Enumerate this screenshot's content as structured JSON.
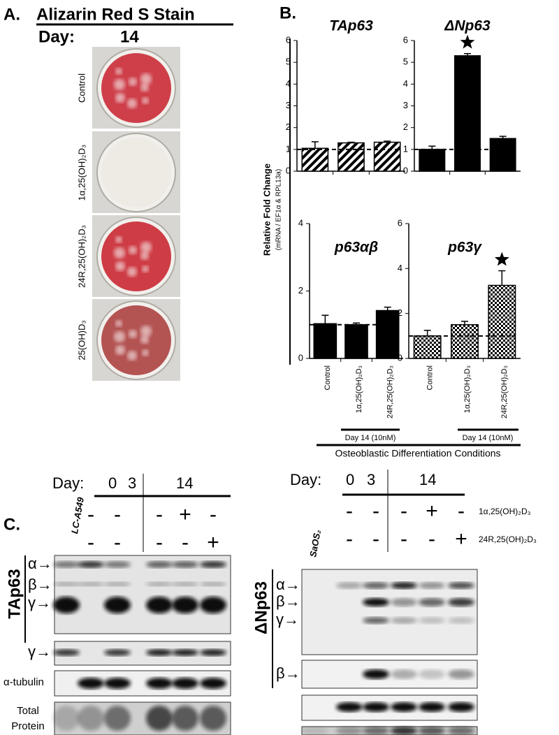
{
  "panel_a": {
    "label": "A.",
    "title": "Alizarin Red S Stain",
    "day_label": "Day:",
    "day": "14",
    "wells": [
      "Control",
      "1α,25(OH)₂D₃",
      "24R,25(OH)₂D₃",
      "25(OH)D₃"
    ]
  },
  "panel_b": {
    "label": "B.",
    "y_label": "Relative Fold Change",
    "y_sublabel": "(mRNA / EF1α & RPL13a)",
    "treatment_label": "Day 14 (10nM)",
    "x_title": "Osteoblastic Differentiation Conditions"
  },
  "chart_data": [
    {
      "type": "bar",
      "title": "TAp63",
      "values": [
        1.05,
        1.3,
        1.33
      ],
      "errors": [
        0.3,
        0.03,
        0.05
      ],
      "ylim": [
        0,
        6
      ],
      "yticks": [
        0,
        1,
        2,
        3,
        4,
        5,
        6
      ],
      "reference": 1,
      "fill": "hatch",
      "color": "#000000",
      "significant": [
        false,
        false,
        false
      ]
    },
    {
      "type": "bar",
      "title": "ΔNp63",
      "values": [
        1.0,
        5.3,
        1.5
      ],
      "errors": [
        0.15,
        0.1,
        0.1
      ],
      "ylim": [
        0,
        6
      ],
      "yticks": [
        0,
        1,
        2,
        3,
        4,
        5,
        6
      ],
      "reference": 1,
      "fill": "solid",
      "color": "#000000",
      "significant": [
        false,
        true,
        false
      ]
    },
    {
      "type": "bar",
      "title": "p63αβ",
      "categories": [
        "Control",
        "1α,25(OH)₂D₃",
        "24R,25(OH)₂D₃"
      ],
      "values": [
        1.03,
        1.0,
        1.42
      ],
      "errors": [
        0.25,
        0.05,
        0.1
      ],
      "ylim": [
        0,
        4
      ],
      "yticks": [
        0,
        2,
        4
      ],
      "reference": 1,
      "fill": "solid",
      "color": "#000000",
      "significant": [
        false,
        false,
        false
      ]
    },
    {
      "type": "bar",
      "title": "p63γ",
      "categories": [
        "Control",
        "1α,25(OH)₂D₃",
        "24R,25(OH)₂D₃"
      ],
      "values": [
        1.0,
        1.5,
        3.25
      ],
      "errors": [
        0.25,
        0.15,
        0.65
      ],
      "ylim": [
        0,
        6
      ],
      "yticks": [
        0,
        2,
        4,
        6
      ],
      "reference": 1,
      "fill": "checker",
      "color": "#000000",
      "significant": [
        false,
        false,
        true
      ]
    }
  ],
  "panel_c": {
    "label": "C.",
    "left": {
      "day_label": "Day:",
      "days": [
        "0",
        "3",
        "14"
      ],
      "cell_line": "LC-A549",
      "treatments": [
        [
          "-",
          "-",
          "-",
          "+",
          "-"
        ],
        [
          "-",
          "-",
          "-",
          "-",
          "+"
        ]
      ],
      "protein": "TAp63",
      "band_labels": [
        "α→",
        "β→",
        "γ→",
        "γ→"
      ],
      "loading_control": "α-tubulin",
      "total_label": [
        "Total",
        "Protein"
      ]
    },
    "right": {
      "day_label": "Day:",
      "days": [
        "0",
        "3",
        "14"
      ],
      "cell_line": "SaOS₂",
      "treatments": [
        [
          "-",
          "-",
          "-",
          "+",
          "-"
        ],
        [
          "-",
          "-",
          "-",
          "-",
          "+"
        ]
      ],
      "treatment_names": [
        "1α,25(OH)₂D₃",
        "24R,25(OH)₂D₃"
      ],
      "protein": "ΔNp63",
      "band_labels": [
        "α→",
        "β→",
        "γ→",
        "β→"
      ]
    }
  }
}
